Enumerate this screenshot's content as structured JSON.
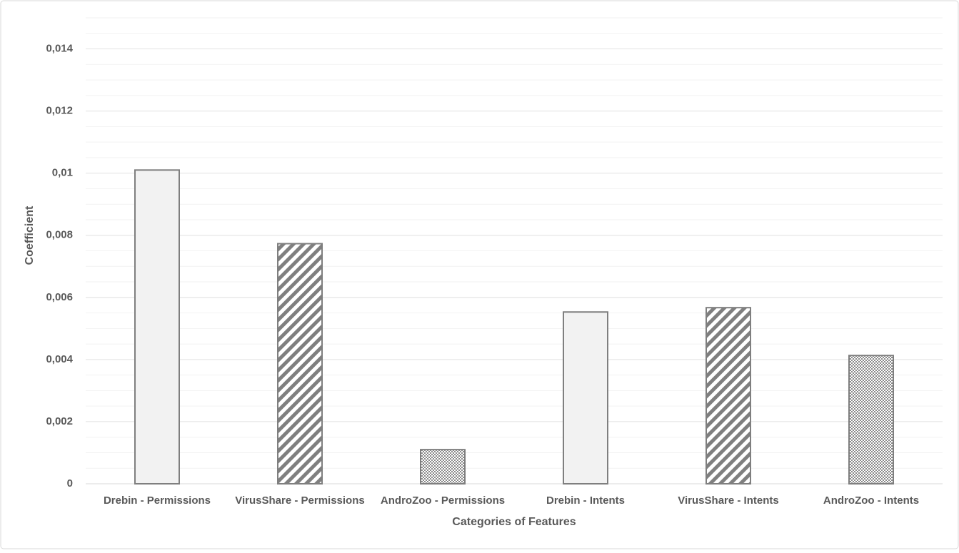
{
  "chart_data": {
    "type": "bar",
    "x_label": "Categories of Features",
    "y_label": "Coefficient",
    "categories": [
      "Drebin - Permissions",
      "VirusShare - Permissions",
      "AndroZoo - Permissions",
      "Drebin - Intents",
      "VirusShare - Intents",
      "AndroZoo - Intents"
    ],
    "values": [
      0.0101,
      0.00773,
      0.0011,
      0.00553,
      0.00567,
      0.00413
    ],
    "patterns": [
      "solid",
      "hatch",
      "dots",
      "solid",
      "hatch",
      "dots"
    ],
    "color": "#7f7f7f",
    "ylim": [
      0,
      0.015
    ],
    "yticks": [
      0,
      {
        "value": 0.002,
        "label": "0,002"
      },
      {
        "value": 0.004,
        "label": "0,004"
      },
      {
        "value": 0.006,
        "label": "0,006"
      },
      {
        "value": 0.008,
        "label": "0,008"
      },
      {
        "value": 0.01,
        "label": "0,01"
      },
      {
        "value": 0.012,
        "label": "0,012"
      },
      {
        "value": 0.014,
        "label": "0,014"
      }
    ],
    "grid": true,
    "minor_grid": true
  }
}
